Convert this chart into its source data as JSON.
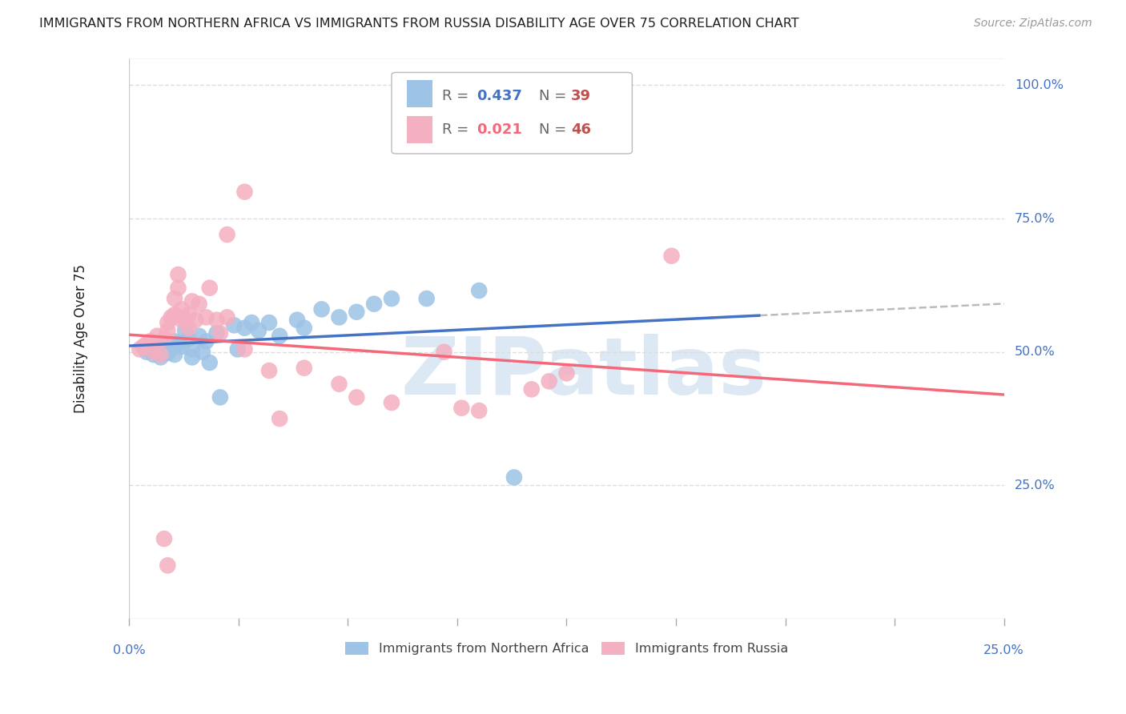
{
  "title": "IMMIGRANTS FROM NORTHERN AFRICA VS IMMIGRANTS FROM RUSSIA DISABILITY AGE OVER 75 CORRELATION CHART",
  "source": "Source: ZipAtlas.com",
  "ylabel": "Disability Age Over 75",
  "xlim": [
    0.0,
    0.25
  ],
  "ylim": [
    0.0,
    1.05
  ],
  "legend_blue_R": "0.437",
  "legend_blue_N": "39",
  "legend_pink_R": "0.021",
  "legend_pink_N": "46",
  "blue_label": "Immigrants from Northern Africa",
  "pink_label": "Immigrants from Russia",
  "title_color": "#231f20",
  "source_color": "#999999",
  "label_color": "#4472c4",
  "blue_color": "#9dc3e6",
  "pink_color": "#f4afc0",
  "blue_line_color": "#4472c4",
  "pink_line_color": "#f4687a",
  "dash_color": "#bbbbbb",
  "R_color": "#4472c4",
  "N_color": "#c0504d",
  "watermark_color": "#dce9f5",
  "blue_scatter": [
    [
      0.005,
      0.5
    ],
    [
      0.007,
      0.495
    ],
    [
      0.008,
      0.505
    ],
    [
      0.009,
      0.49
    ],
    [
      0.01,
      0.5
    ],
    [
      0.01,
      0.51
    ],
    [
      0.011,
      0.498
    ],
    [
      0.012,
      0.505
    ],
    [
      0.013,
      0.52
    ],
    [
      0.013,
      0.495
    ],
    [
      0.014,
      0.515
    ],
    [
      0.015,
      0.51
    ],
    [
      0.016,
      0.54
    ],
    [
      0.017,
      0.525
    ],
    [
      0.018,
      0.49
    ],
    [
      0.018,
      0.505
    ],
    [
      0.02,
      0.53
    ],
    [
      0.021,
      0.5
    ],
    [
      0.022,
      0.52
    ],
    [
      0.023,
      0.48
    ],
    [
      0.025,
      0.535
    ],
    [
      0.026,
      0.415
    ],
    [
      0.03,
      0.55
    ],
    [
      0.031,
      0.505
    ],
    [
      0.033,
      0.545
    ],
    [
      0.035,
      0.555
    ],
    [
      0.037,
      0.54
    ],
    [
      0.04,
      0.555
    ],
    [
      0.043,
      0.53
    ],
    [
      0.048,
      0.56
    ],
    [
      0.05,
      0.545
    ],
    [
      0.055,
      0.58
    ],
    [
      0.06,
      0.565
    ],
    [
      0.065,
      0.575
    ],
    [
      0.07,
      0.59
    ],
    [
      0.075,
      0.6
    ],
    [
      0.085,
      0.6
    ],
    [
      0.1,
      0.615
    ],
    [
      0.11,
      0.265
    ]
  ],
  "pink_scatter": [
    [
      0.003,
      0.505
    ],
    [
      0.004,
      0.51
    ],
    [
      0.005,
      0.515
    ],
    [
      0.006,
      0.52
    ],
    [
      0.007,
      0.5
    ],
    [
      0.008,
      0.53
    ],
    [
      0.009,
      0.495
    ],
    [
      0.01,
      0.525
    ],
    [
      0.011,
      0.54
    ],
    [
      0.011,
      0.555
    ],
    [
      0.012,
      0.565
    ],
    [
      0.013,
      0.6
    ],
    [
      0.013,
      0.57
    ],
    [
      0.014,
      0.62
    ],
    [
      0.014,
      0.645
    ],
    [
      0.015,
      0.56
    ],
    [
      0.015,
      0.58
    ],
    [
      0.016,
      0.56
    ],
    [
      0.017,
      0.57
    ],
    [
      0.017,
      0.545
    ],
    [
      0.018,
      0.595
    ],
    [
      0.019,
      0.56
    ],
    [
      0.02,
      0.59
    ],
    [
      0.022,
      0.565
    ],
    [
      0.023,
      0.62
    ],
    [
      0.025,
      0.56
    ],
    [
      0.026,
      0.535
    ],
    [
      0.028,
      0.565
    ],
    [
      0.028,
      0.72
    ],
    [
      0.033,
      0.505
    ],
    [
      0.033,
      0.8
    ],
    [
      0.04,
      0.465
    ],
    [
      0.043,
      0.375
    ],
    [
      0.05,
      0.47
    ],
    [
      0.06,
      0.44
    ],
    [
      0.065,
      0.415
    ],
    [
      0.075,
      0.405
    ],
    [
      0.09,
      0.5
    ],
    [
      0.01,
      0.15
    ],
    [
      0.011,
      0.1
    ],
    [
      0.155,
      0.68
    ],
    [
      0.095,
      0.395
    ],
    [
      0.1,
      0.39
    ],
    [
      0.115,
      0.43
    ],
    [
      0.12,
      0.445
    ],
    [
      0.125,
      0.46
    ]
  ]
}
